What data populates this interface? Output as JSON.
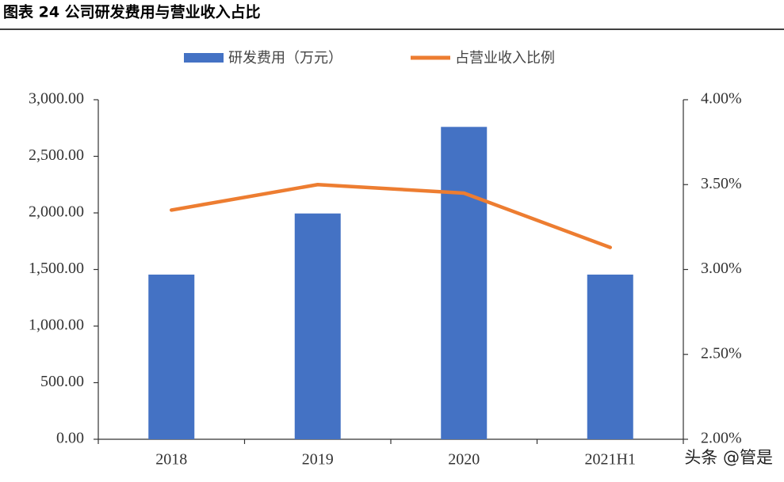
{
  "chart_data": {
    "type": "bar",
    "title": "图表 24 公司研发费用与营业收入占比",
    "categories": [
      "2018",
      "2019",
      "2020",
      "2021H1"
    ],
    "series": [
      {
        "name": "研发费用（万元）",
        "type": "bar",
        "color": "#4472c4",
        "values": [
          1455,
          1995,
          2760,
          1455
        ]
      },
      {
        "name": "占营业收入比例",
        "type": "line",
        "axis": "y2",
        "color": "#ed7d31",
        "values": [
          3.35,
          3.5,
          3.45,
          3.13
        ]
      }
    ],
    "ylim": [
      0,
      3000
    ],
    "yticks": [
      {
        "value": 0,
        "label": "0.00"
      },
      {
        "value": 500,
        "label": "500.00"
      },
      {
        "value": 1000,
        "label": "1,000.00"
      },
      {
        "value": 1500,
        "label": "1,500.00"
      },
      {
        "value": 2000,
        "label": "2,000.00"
      },
      {
        "value": 2500,
        "label": "2,500.00"
      },
      {
        "value": 3000,
        "label": "3,000.00"
      }
    ],
    "y2lim": [
      2,
      4
    ],
    "y2ticks": [
      {
        "value": 2,
        "label": "2.00%"
      },
      {
        "value": 2.5,
        "label": "2.50%"
      },
      {
        "value": 3,
        "label": "3.00%"
      },
      {
        "value": 3.5,
        "label": "3.50%"
      },
      {
        "value": 4,
        "label": "4.00%"
      }
    ],
    "grid": false,
    "legend": "top",
    "watermark": "头条 @管是"
  }
}
